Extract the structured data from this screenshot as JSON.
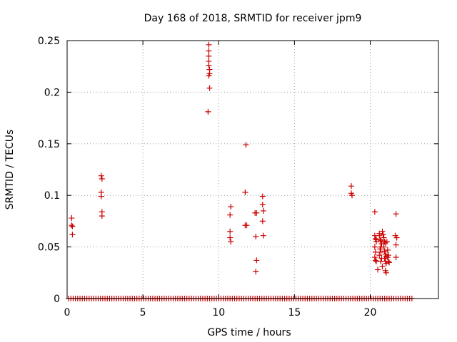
{
  "chart_data": {
    "type": "scatter",
    "title": "Day 168 of 2018, SRMTID for receiver jpm9",
    "xlabel": "GPS time / hours",
    "ylabel": "SRMTID / TECUs",
    "xlim": [
      0,
      24.5
    ],
    "ylim": [
      0,
      0.25
    ],
    "xticks": [
      0,
      5,
      10,
      15,
      20
    ],
    "xtick_labels": [
      "0",
      "5",
      "10",
      "15",
      "20"
    ],
    "yticks": [
      0,
      0.05,
      0.1,
      0.15,
      0.2,
      0.25
    ],
    "ytick_labels": [
      "0",
      "0.05",
      "0.1",
      "0.15",
      "0.2",
      "0.25"
    ],
    "grid": true,
    "marker": "+",
    "color": "#cc0000",
    "baseline_zero_range_hours": [
      0.1,
      22.8
    ],
    "baseline_zero_step_hours": 0.15,
    "points": [
      [
        0.3,
        0.078
      ],
      [
        0.3,
        0.071
      ],
      [
        0.35,
        0.07
      ],
      [
        0.35,
        0.062
      ],
      [
        2.25,
        0.119
      ],
      [
        2.3,
        0.116
      ],
      [
        2.25,
        0.103
      ],
      [
        2.25,
        0.099
      ],
      [
        2.3,
        0.084
      ],
      [
        2.3,
        0.08
      ],
      [
        9.35,
        0.246
      ],
      [
        9.35,
        0.24
      ],
      [
        9.35,
        0.235
      ],
      [
        9.35,
        0.23
      ],
      [
        9.35,
        0.226
      ],
      [
        9.4,
        0.222
      ],
      [
        9.4,
        0.218
      ],
      [
        9.35,
        0.216
      ],
      [
        9.4,
        0.204
      ],
      [
        9.3,
        0.181
      ],
      [
        10.8,
        0.089
      ],
      [
        10.75,
        0.081
      ],
      [
        10.75,
        0.065
      ],
      [
        10.75,
        0.059
      ],
      [
        10.8,
        0.055
      ],
      [
        11.8,
        0.149
      ],
      [
        11.75,
        0.103
      ],
      [
        11.75,
        0.071
      ],
      [
        11.85,
        0.071
      ],
      [
        12.4,
        0.083
      ],
      [
        12.5,
        0.083
      ],
      [
        12.45,
        0.06
      ],
      [
        12.5,
        0.037
      ],
      [
        12.45,
        0.026
      ],
      [
        12.9,
        0.099
      ],
      [
        12.9,
        0.091
      ],
      [
        12.95,
        0.085
      ],
      [
        12.9,
        0.075
      ],
      [
        12.95,
        0.061
      ],
      [
        18.75,
        0.109
      ],
      [
        18.75,
        0.102
      ],
      [
        18.8,
        0.1
      ],
      [
        20.3,
        0.084
      ],
      [
        20.3,
        0.061
      ],
      [
        20.35,
        0.058
      ],
      [
        20.4,
        0.057
      ],
      [
        20.4,
        0.055
      ],
      [
        20.3,
        0.05
      ],
      [
        20.35,
        0.045
      ],
      [
        20.3,
        0.04
      ],
      [
        20.35,
        0.037
      ],
      [
        20.4,
        0.036
      ],
      [
        20.5,
        0.028
      ],
      [
        20.6,
        0.063
      ],
      [
        20.6,
        0.061
      ],
      [
        20.65,
        0.057
      ],
      [
        20.7,
        0.056
      ],
      [
        20.75,
        0.053
      ],
      [
        20.7,
        0.05
      ],
      [
        20.65,
        0.048
      ],
      [
        20.7,
        0.045
      ],
      [
        20.6,
        0.042
      ],
      [
        20.75,
        0.039
      ],
      [
        20.7,
        0.036
      ],
      [
        20.8,
        0.031
      ],
      [
        20.8,
        0.065
      ],
      [
        20.85,
        0.062
      ],
      [
        20.9,
        0.059
      ],
      [
        20.95,
        0.055
      ],
      [
        21.0,
        0.054
      ],
      [
        20.9,
        0.05
      ],
      [
        20.95,
        0.046
      ],
      [
        21.0,
        0.043
      ],
      [
        21.05,
        0.041
      ],
      [
        20.95,
        0.039
      ],
      [
        21.0,
        0.036
      ],
      [
        21.05,
        0.034
      ],
      [
        21.0,
        0.027
      ],
      [
        21.05,
        0.025
      ],
      [
        21.1,
        0.055
      ],
      [
        21.15,
        0.047
      ],
      [
        21.2,
        0.042
      ],
      [
        21.15,
        0.04
      ],
      [
        21.2,
        0.036
      ],
      [
        21.25,
        0.035
      ],
      [
        21.7,
        0.082
      ],
      [
        21.65,
        0.061
      ],
      [
        21.75,
        0.059
      ],
      [
        21.7,
        0.052
      ],
      [
        21.7,
        0.04
      ]
    ]
  }
}
